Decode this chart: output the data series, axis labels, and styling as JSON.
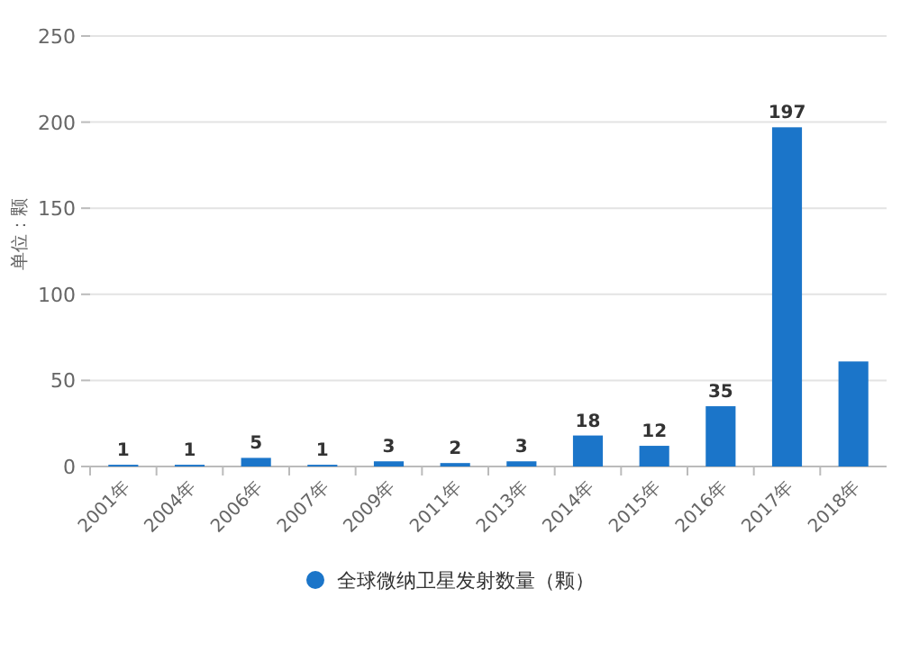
{
  "chart_data": {
    "type": "bar",
    "ylabel": "单位：颗",
    "categories": [
      "2001年",
      "2004年",
      "2006年",
      "2007年",
      "2009年",
      "2011年",
      "2013年",
      "2014年",
      "2015年",
      "2016年",
      "2017年",
      "2018年"
    ],
    "series": [
      {
        "name": "全球微纳卫星发射数量（颗）",
        "color": "#1b75c9",
        "values": [
          1,
          1,
          5,
          1,
          3,
          2,
          3,
          18,
          12,
          35,
          197,
          61
        ],
        "value_labels": [
          "1",
          "1",
          "5",
          "1",
          "3",
          "2",
          "3",
          "18",
          "12",
          "35",
          "197",
          null
        ]
      }
    ],
    "ylim": [
      0,
      250
    ],
    "yticks": [
      0,
      50,
      100,
      150,
      200,
      250
    ],
    "grid": "y",
    "legend": "bottom"
  }
}
